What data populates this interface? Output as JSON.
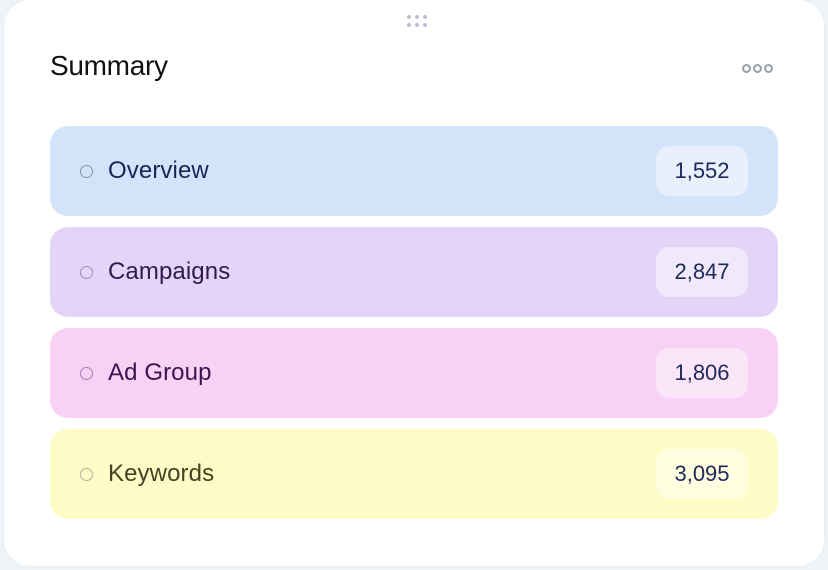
{
  "card": {
    "title": "Summary",
    "drag_handle_icon": "grip-dots-icon",
    "more_icon": "more-horizontal-icon"
  },
  "rows": [
    {
      "label": "Overview",
      "count": "1,552",
      "bg": "#d3e3f9",
      "text_color": "#1b2456",
      "bullet_color": "#8a93a8"
    },
    {
      "label": "Campaigns",
      "count": "2,847",
      "bg": "#e4d5f8",
      "text_color": "#32184f",
      "bullet_color": "#a68ab5"
    },
    {
      "label": "Ad Group",
      "count": "1,806",
      "bg": "#f8d2f4",
      "text_color": "#3f1250",
      "bullet_color": "#a67ab8"
    },
    {
      "label": "Keywords",
      "count": "3,095",
      "bg": "#fefcc6",
      "text_color": "#474322",
      "bullet_color": "#b0b098"
    }
  ]
}
